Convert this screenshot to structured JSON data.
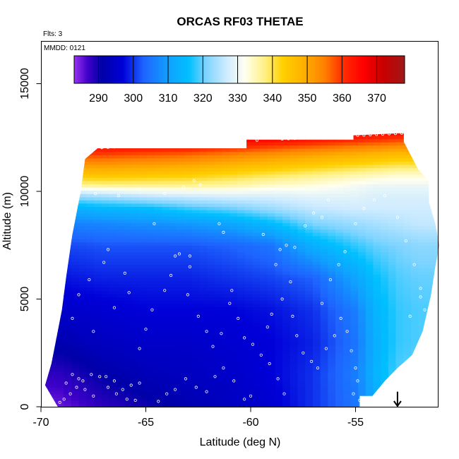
{
  "chart_data": {
    "type": "heatmap",
    "title": "ORCAS RF03 THETAE",
    "annotations": {
      "flights": "Flts: 3",
      "date": "MMDD: 0121"
    },
    "xlabel": "Latitude (deg N)",
    "ylabel": "Altitude (m)",
    "xlim": [
      -70,
      -51
    ],
    "ylim": [
      0,
      16500
    ],
    "x_ticks": [
      -70,
      -65,
      -60,
      -55
    ],
    "x_tick_labels": [
      "-70",
      "-65",
      "-60",
      "-55"
    ],
    "y_ticks": [
      0,
      5000,
      10000,
      15000
    ],
    "y_tick_labels": [
      "0",
      "5000",
      "10000",
      "15000"
    ],
    "colorbar": {
      "range": [
        283,
        378
      ],
      "ticks": [
        290,
        300,
        310,
        320,
        330,
        340,
        350,
        360,
        370
      ],
      "tick_labels": [
        "290",
        "300",
        "310",
        "320",
        "330",
        "340",
        "350",
        "360",
        "370"
      ],
      "stops": [
        {
          "v": 283,
          "c": "#9a32f0"
        },
        {
          "v": 287,
          "c": "#3d00c8"
        },
        {
          "v": 291,
          "c": "#0000a8"
        },
        {
          "v": 297,
          "c": "#0000d8"
        },
        {
          "v": 303,
          "c": "#1e64ff"
        },
        {
          "v": 310,
          "c": "#10a0ff"
        },
        {
          "v": 316,
          "c": "#00c0ff"
        },
        {
          "v": 321,
          "c": "#7fd4ff"
        },
        {
          "v": 327,
          "c": "#d0ecff"
        },
        {
          "v": 332,
          "c": "#fffff0"
        },
        {
          "v": 338,
          "c": "#fff080"
        },
        {
          "v": 343,
          "c": "#ffd000"
        },
        {
          "v": 349,
          "c": "#ffb000"
        },
        {
          "v": 355,
          "c": "#ff8000"
        },
        {
          "v": 360,
          "c": "#ff3000"
        },
        {
          "v": 366,
          "c": "#ff0000"
        },
        {
          "v": 372,
          "c": "#c80000"
        },
        {
          "v": 378,
          "c": "#a01818"
        }
      ]
    },
    "field_grid": {
      "lat": [
        -69.2,
        -67.1,
        -65.0,
        -63.0,
        -61.0,
        -59.0,
        -57.0,
        -55.0,
        -54.0,
        -53.0,
        -52.0
      ],
      "alt": [
        0,
        1500,
        3000,
        4500,
        6000,
        7500,
        8500,
        9200,
        9800,
        10300,
        10800,
        11300,
        11800,
        12300,
        12700
      ],
      "theta_e": [
        [
          285,
          288,
          290,
          292,
          294,
          296,
          300,
          305,
          312,
          318,
          320
        ],
        [
          288,
          291,
          293,
          294,
          295,
          297,
          300,
          306,
          314,
          319,
          320
        ],
        [
          292,
          294,
          295,
          295,
          296,
          297,
          299,
          305,
          313,
          318,
          319
        ],
        [
          295,
          296,
          297,
          297,
          297,
          298,
          300,
          306,
          314,
          318,
          319
        ],
        [
          298,
          299,
          299,
          299,
          300,
          301,
          303,
          311,
          316,
          319,
          320
        ],
        [
          301,
          302,
          302,
          302,
          303,
          305,
          313,
          318,
          320,
          321,
          322
        ],
        [
          306,
          307,
          308,
          309,
          311,
          315,
          321,
          323,
          324,
          325,
          326
        ],
        [
          312,
          314,
          315,
          318,
          320,
          323,
          326,
          327,
          327,
          327,
          327
        ],
        [
          322,
          324,
          326,
          327,
          328,
          328,
          329,
          329,
          328,
          328,
          328
        ],
        [
          336,
          337,
          337,
          337,
          336,
          334,
          333,
          331,
          330,
          330,
          330
        ],
        [
          345,
          346,
          345,
          344,
          342,
          340,
          338,
          336,
          335,
          334,
          334
        ],
        [
          352,
          353,
          352,
          351,
          349,
          347,
          345,
          343,
          342,
          341,
          341
        ],
        [
          360,
          360,
          359,
          358,
          356,
          354,
          352,
          350,
          349,
          348,
          348
        ],
        [
          368,
          368,
          367,
          366,
          365,
          363,
          361,
          359,
          358,
          357,
          357
        ],
        [
          374,
          374,
          373,
          372,
          371,
          370,
          368,
          366,
          365,
          364,
          364
        ]
      ]
    },
    "coverage_top": [
      [
        -67.9,
        11500
      ],
      [
        -67.3,
        12000
      ],
      [
        -60.2,
        12000
      ],
      [
        -60.2,
        12400
      ],
      [
        -55.1,
        12400
      ],
      [
        -55.1,
        12600
      ],
      [
        -53.0,
        12700
      ],
      [
        -52.7,
        12700
      ],
      [
        -52.7,
        12300
      ]
    ],
    "coverage_bottom": [
      [
        -69.2,
        0
      ],
      [
        -54.8,
        0
      ],
      [
        -54.8,
        500
      ],
      [
        -54.2,
        500
      ],
      [
        -53.6,
        1200
      ],
      [
        -53.0,
        1800
      ],
      [
        -52.3,
        2400
      ],
      [
        -51.8,
        3500
      ],
      [
        -51.4,
        5200
      ],
      [
        -51.2,
        6500
      ]
    ],
    "coverage_right": [
      [
        -51.2,
        6500
      ],
      [
        -51.0,
        7500
      ],
      [
        -51.2,
        8500
      ],
      [
        -51.5,
        9500
      ],
      [
        -51.5,
        10500
      ],
      [
        -52.0,
        11000
      ],
      [
        -52.7,
        12300
      ]
    ],
    "coverage_left": [
      [
        -67.9,
        11500
      ],
      [
        -68.1,
        10000
      ],
      [
        -68.5,
        8000
      ],
      [
        -68.8,
        6000
      ],
      [
        -69.0,
        4500
      ],
      [
        -69.3,
        3000
      ],
      [
        -69.5,
        2000
      ],
      [
        -69.8,
        1000
      ],
      [
        -69.2,
        0
      ]
    ],
    "flight_track_points": [
      [
        -69.1,
        200
      ],
      [
        -68.9,
        350
      ],
      [
        -68.6,
        600
      ],
      [
        -68.3,
        900
      ],
      [
        -68.0,
        1200
      ],
      [
        -67.6,
        1500
      ],
      [
        -67.2,
        1400
      ],
      [
        -66.8,
        900
      ],
      [
        -66.4,
        600
      ],
      [
        -65.9,
        350
      ],
      [
        -65.5,
        300
      ],
      [
        -68.8,
        1100
      ],
      [
        -68.5,
        1500
      ],
      [
        -68.2,
        1300
      ],
      [
        -67.9,
        800
      ],
      [
        -67.5,
        500
      ],
      [
        -66.9,
        1400
      ],
      [
        -66.5,
        1200
      ],
      [
        -66.1,
        800
      ],
      [
        -65.7,
        1000
      ],
      [
        -65.3,
        1100
      ],
      [
        -64.4,
        250
      ],
      [
        -64.0,
        600
      ],
      [
        -63.6,
        800
      ],
      [
        -63.1,
        1300
      ],
      [
        -62.6,
        900
      ],
      [
        -62.1,
        700
      ],
      [
        -61.7,
        1400
      ],
      [
        -61.3,
        1800
      ],
      [
        -60.8,
        1200
      ],
      [
        -60.3,
        350
      ],
      [
        -60.0,
        500
      ],
      [
        -65.0,
        3600
      ],
      [
        -65.3,
        2700
      ],
      [
        -64.7,
        4500
      ],
      [
        -64.1,
        5400
      ],
      [
        -63.8,
        6100
      ],
      [
        -63.4,
        7100
      ],
      [
        -63.6,
        7000
      ],
      [
        -62.9,
        6500
      ],
      [
        -63.0,
        5200
      ],
      [
        -62.5,
        4200
      ],
      [
        -62.1,
        3500
      ],
      [
        -61.8,
        2800
      ],
      [
        -61.4,
        3400
      ],
      [
        -61.0,
        4800
      ],
      [
        -60.9,
        5400
      ],
      [
        -60.6,
        4100
      ],
      [
        -60.3,
        3200
      ],
      [
        -59.9,
        2900
      ],
      [
        -59.5,
        2400
      ],
      [
        -59.1,
        2000
      ],
      [
        -58.7,
        1300
      ],
      [
        -58.4,
        600
      ],
      [
        -59.2,
        3700
      ],
      [
        -59.0,
        4300
      ],
      [
        -58.8,
        6600
      ],
      [
        -58.6,
        7300
      ],
      [
        -58.3,
        7500
      ],
      [
        -57.9,
        7400
      ],
      [
        -58.1,
        5800
      ],
      [
        -58.5,
        5000
      ],
      [
        -58.0,
        4200
      ],
      [
        -57.8,
        3300
      ],
      [
        -57.5,
        2500
      ],
      [
        -57.1,
        2100
      ],
      [
        -56.8,
        1800
      ],
      [
        -56.4,
        2700
      ],
      [
        -56.0,
        3300
      ],
      [
        -55.7,
        4100
      ],
      [
        -55.4,
        3500
      ],
      [
        -55.2,
        2600
      ],
      [
        -55.0,
        1800
      ],
      [
        -54.9,
        1200
      ],
      [
        -55.1,
        600
      ],
      [
        -54.8,
        300
      ],
      [
        -56.6,
        4800
      ],
      [
        -56.2,
        5900
      ],
      [
        -55.8,
        6600
      ],
      [
        -55.5,
        7200
      ],
      [
        -55.0,
        8500
      ],
      [
        -54.6,
        9200
      ],
      [
        -54.1,
        9600
      ],
      [
        -53.6,
        9800
      ],
      [
        -53.0,
        8800
      ],
      [
        -52.6,
        7700
      ],
      [
        -52.2,
        6600
      ],
      [
        -51.9,
        5500
      ],
      [
        -51.7,
        4500
      ],
      [
        -51.5,
        3300
      ],
      [
        -51.3,
        2600
      ],
      [
        -51.6,
        1900
      ],
      [
        -51.9,
        5100
      ],
      [
        -52.4,
        4200
      ],
      [
        -57.4,
        8400
      ],
      [
        -57.0,
        9000
      ],
      [
        -56.6,
        8800
      ],
      [
        -56.3,
        9600
      ],
      [
        -61.5,
        8500
      ],
      [
        -61.3,
        8100
      ],
      [
        -62.4,
        10300
      ],
      [
        -62.7,
        10500
      ],
      [
        -63.2,
        10200
      ],
      [
        -64.1,
        9900
      ],
      [
        -65.3,
        10100
      ],
      [
        -66.3,
        9800
      ],
      [
        -67.4,
        9900
      ],
      [
        -68.2,
        10000
      ],
      [
        -64.6,
        8500
      ],
      [
        -66.8,
        7300
      ],
      [
        -67.0,
        6700
      ],
      [
        -67.7,
        5900
      ],
      [
        -68.2,
        5200
      ],
      [
        -68.5,
        4100
      ],
      [
        -67.5,
        3500
      ],
      [
        -66.5,
        4600
      ],
      [
        -65.8,
        5300
      ],
      [
        -66.0,
        6200
      ],
      [
        -62.9,
        7000
      ],
      [
        -59.4,
        8000
      ]
    ],
    "top_track_points": [
      -67.7,
      -67.4,
      -67.1,
      -66.8,
      -66.5,
      -66.2,
      -65.9,
      -65.6,
      -65.3,
      -65.0,
      -64.7,
      -64.4,
      -63.9,
      -63.6,
      -63.3,
      -63.0,
      -62.7,
      -62.4,
      -62.1,
      -61.8,
      -61.0,
      -60.7,
      -60.4,
      -59.7,
      -58.5,
      -58.2,
      -57.9,
      -57.6,
      -57.3,
      -57.0,
      -56.7,
      -56.4,
      -56.1,
      -55.8,
      -55.5,
      -55.2,
      -54.9,
      -54.6,
      -54.3,
      -54.0,
      -53.7,
      -53.4,
      -53.1,
      -52.8
    ],
    "arrow_marker": {
      "lat": -53.0,
      "alt_top": 700,
      "alt_bottom": 0
    }
  }
}
